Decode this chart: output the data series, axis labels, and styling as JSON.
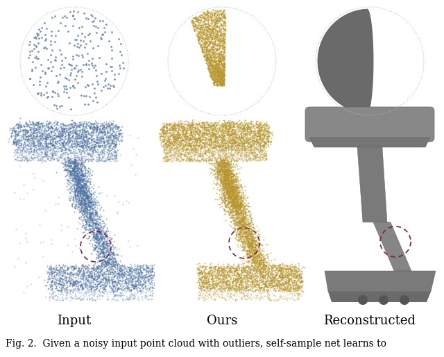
{
  "caption": "Fig. 2.  Given a noisy input point cloud with outliers, self-sample net learns to",
  "labels": [
    "Input",
    "Ours",
    "Reconstructed"
  ],
  "label_fontsize": 13,
  "caption_fontsize": 10,
  "background_color": "#ffffff",
  "inset_circle_color": "#cccccc",
  "dashed_circle_color": "#7a2040",
  "input_dot_color": "#4a6fa0",
  "ours_dot_color": "#b8962e",
  "input_bg_color": "#dce8f8",
  "ours_bg_color": "#f0e8c0"
}
